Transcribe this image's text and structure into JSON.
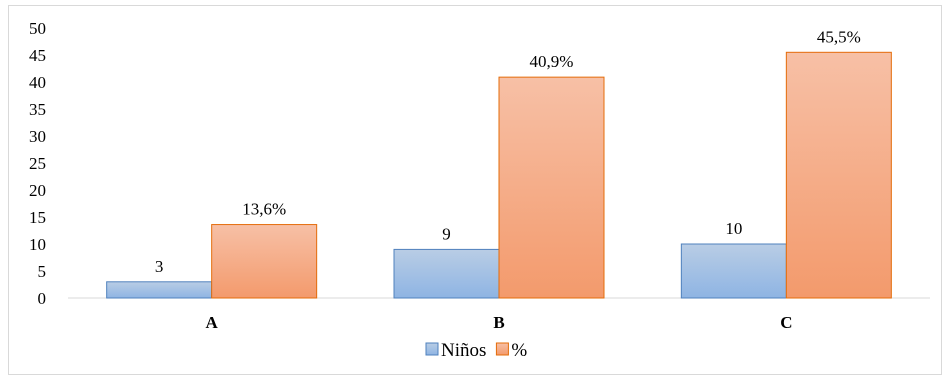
{
  "chart_data": {
    "type": "bar",
    "categories": [
      "A",
      "B",
      "C"
    ],
    "series": [
      {
        "name": "Niños",
        "values": [
          3,
          9,
          10
        ],
        "labels": [
          "3",
          "9",
          "10"
        ],
        "color": "#95b3d7",
        "stroke": "#4f81bd"
      },
      {
        "name": "%",
        "values": [
          13.6,
          40.9,
          45.5
        ],
        "labels": [
          "13,6%",
          "40,9%",
          "45,5%"
        ],
        "color": "#f4a582",
        "stroke": "#e46c0a"
      }
    ],
    "yticks": [
      "0",
      "5",
      "10",
      "15",
      "20",
      "25",
      "30",
      "35",
      "40",
      "45",
      "50"
    ],
    "ylim": [
      0,
      50
    ],
    "grid": false,
    "legend": "bottom-center"
  }
}
